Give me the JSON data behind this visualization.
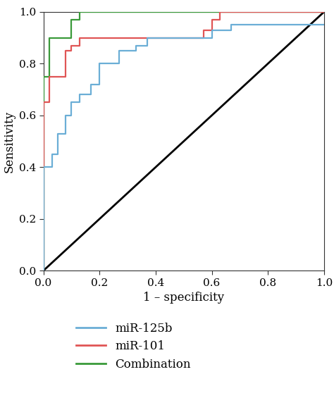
{
  "title": "",
  "xlabel": "1 – specificity",
  "ylabel": "Sensitivity",
  "xlim": [
    0.0,
    1.0
  ],
  "ylim": [
    0.0,
    1.0
  ],
  "diagonal_color": "#000000",
  "diagonal_linewidth": 2.0,
  "curves": {
    "mir125b": {
      "label": "miR-125b",
      "color": "#6baed6",
      "linewidth": 1.6,
      "fpr": [
        0.0,
        0.0,
        0.03,
        0.03,
        0.05,
        0.05,
        0.08,
        0.08,
        0.1,
        0.1,
        0.13,
        0.13,
        0.17,
        0.17,
        0.2,
        0.2,
        0.27,
        0.27,
        0.33,
        0.33,
        0.37,
        0.37,
        0.6,
        0.6,
        0.67,
        0.67,
        1.0
      ],
      "tpr": [
        0.0,
        0.4,
        0.4,
        0.45,
        0.45,
        0.53,
        0.53,
        0.6,
        0.6,
        0.65,
        0.65,
        0.68,
        0.68,
        0.72,
        0.72,
        0.8,
        0.8,
        0.85,
        0.85,
        0.87,
        0.87,
        0.9,
        0.9,
        0.93,
        0.93,
        0.95,
        0.95
      ]
    },
    "mir101": {
      "label": "miR-101",
      "color": "#e05555",
      "linewidth": 1.6,
      "fpr": [
        0.0,
        0.0,
        0.02,
        0.02,
        0.08,
        0.08,
        0.1,
        0.1,
        0.13,
        0.13,
        0.27,
        0.27,
        0.33,
        0.33,
        0.57,
        0.57,
        0.6,
        0.6,
        0.63,
        0.63,
        1.0
      ],
      "tpr": [
        0.0,
        0.65,
        0.65,
        0.75,
        0.75,
        0.85,
        0.85,
        0.87,
        0.87,
        0.9,
        0.9,
        0.9,
        0.9,
        0.9,
        0.9,
        0.93,
        0.93,
        0.97,
        0.97,
        1.0,
        1.0
      ]
    },
    "combination": {
      "label": "Combination",
      "color": "#3a9a3a",
      "linewidth": 1.6,
      "fpr": [
        0.0,
        0.0,
        0.02,
        0.02,
        0.1,
        0.1,
        0.13,
        0.13,
        0.2,
        0.2,
        1.0
      ],
      "tpr": [
        0.0,
        0.75,
        0.75,
        0.9,
        0.9,
        0.97,
        0.97,
        1.0,
        1.0,
        1.0,
        1.0
      ]
    }
  },
  "tick_fontsize": 11,
  "label_fontsize": 12,
  "legend_fontsize": 12,
  "xticks": [
    0.0,
    0.2,
    0.4,
    0.6,
    0.8,
    1.0
  ],
  "yticks": [
    0.0,
    0.2,
    0.4,
    0.6,
    0.8,
    1.0
  ],
  "background_color": "#ffffff",
  "spine_color": "#333333"
}
